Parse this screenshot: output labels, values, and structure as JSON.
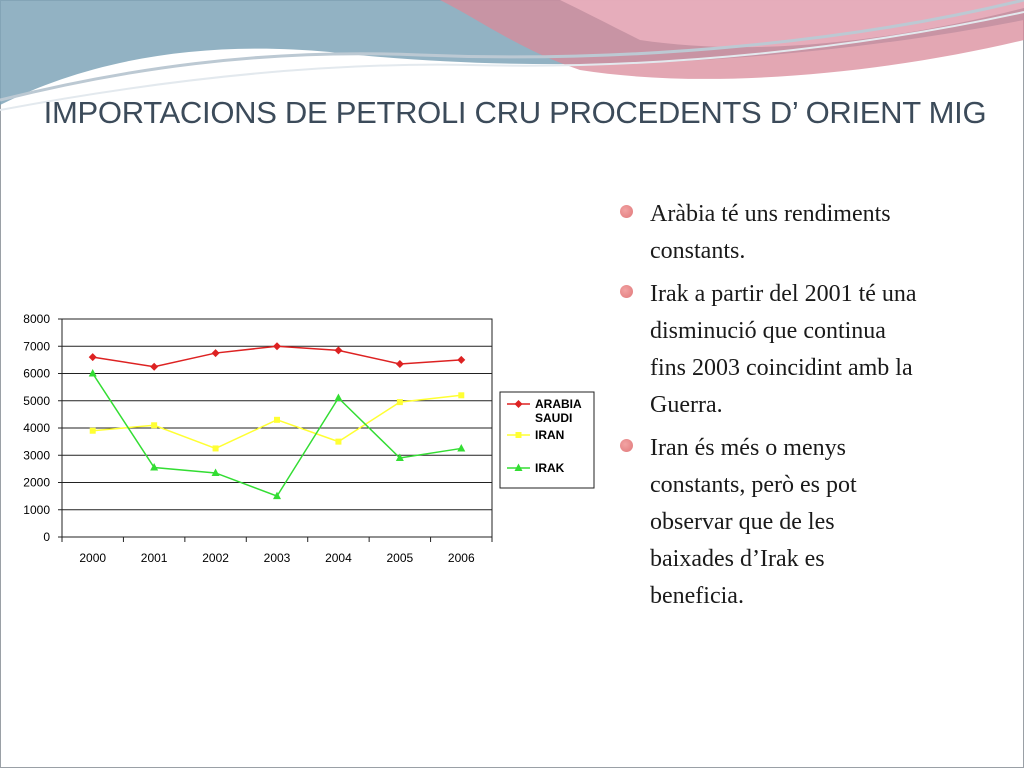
{
  "slide": {
    "title": "IMPORTACIONS DE PETROLI CRU PROCEDENTS D’ ORIENT MIG",
    "bullets": [
      "Aràbia té uns rendiments constants.",
      "Irak a partir del 2001 té una disminució que continua fins 2003 coincidint amb la Guerra.",
      "Iran és més o menys constants, però es pot observar que de les baixades d’Irak es beneficia."
    ]
  },
  "chart_data": {
    "type": "line",
    "x": [
      "2000",
      "2001",
      "2002",
      "2003",
      "2004",
      "2005",
      "2006"
    ],
    "ylim": [
      0,
      8000
    ],
    "yticks": [
      0,
      1000,
      2000,
      3000,
      4000,
      5000,
      6000,
      7000,
      8000
    ],
    "grid": true,
    "legend": "right",
    "series": [
      {
        "name": "ARABIA SAUDI",
        "color": "#dd2222",
        "marker": "diamond",
        "values": [
          6600,
          6250,
          6750,
          7000,
          6850,
          6350,
          6500
        ]
      },
      {
        "name": "IRAN",
        "color": "#ffff33",
        "marker": "square",
        "values": [
          3900,
          4100,
          3250,
          4300,
          3500,
          4950,
          5200
        ]
      },
      {
        "name": "IRAK",
        "color": "#33dd33",
        "marker": "triangle",
        "values": [
          6000,
          2550,
          2350,
          1500,
          5100,
          2900,
          3250
        ]
      }
    ]
  }
}
